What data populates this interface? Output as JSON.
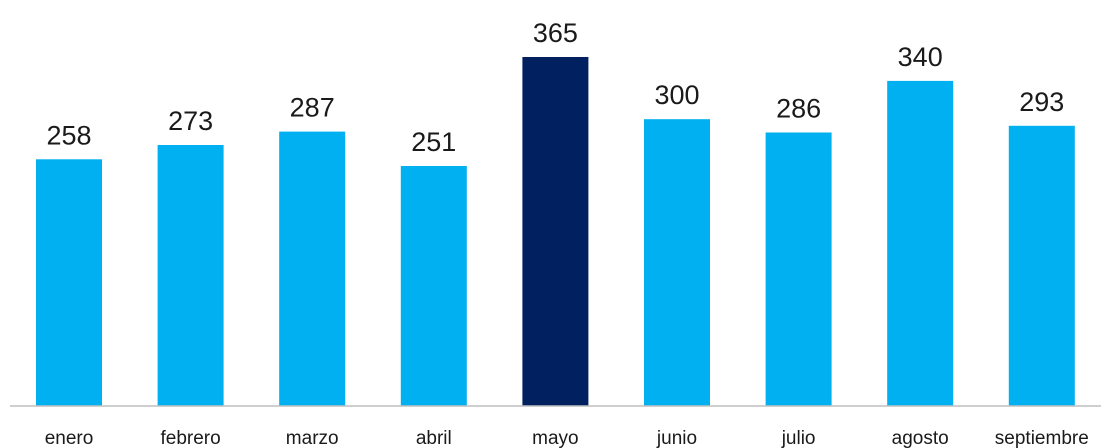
{
  "chart_data": {
    "type": "bar",
    "categories": [
      "enero",
      "febrero",
      "marzo",
      "abril",
      "mayo",
      "junio",
      "julio",
      "agosto",
      "septiembre"
    ],
    "values": [
      258,
      273,
      287,
      251,
      365,
      300,
      286,
      340,
      293
    ],
    "ylim": [
      0,
      365
    ],
    "grid": false,
    "legend": "none",
    "data_labels": true,
    "highlight_category": "mayo"
  },
  "colors": {
    "bar": "#00b0f0",
    "highlight_bar": "#002060",
    "axis": "#bfbfbf",
    "text": "#1a1a1a"
  }
}
